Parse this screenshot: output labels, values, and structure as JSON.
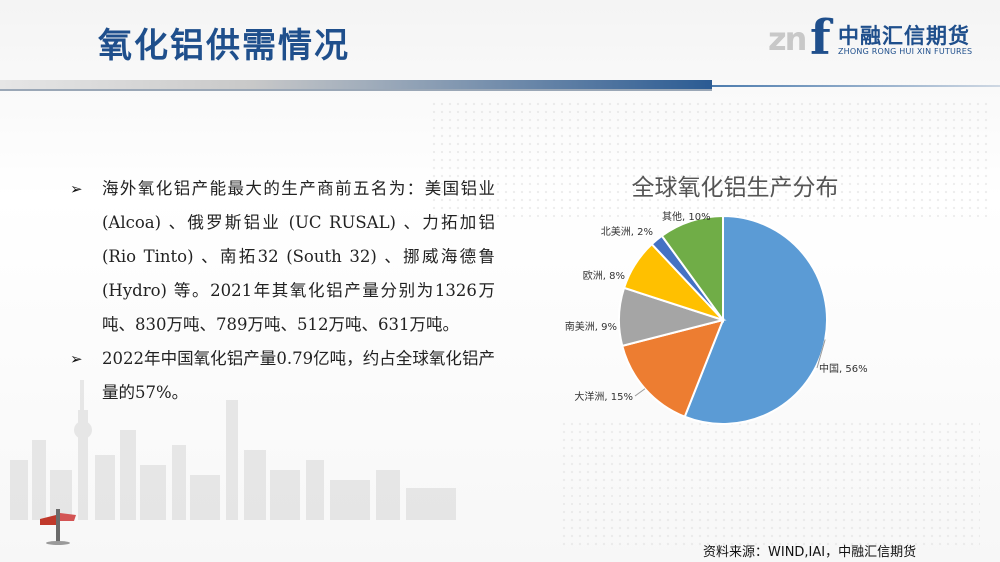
{
  "header": {
    "title": "氧化铝供需情况"
  },
  "logo": {
    "mark_left": "zn",
    "mark_right": "f",
    "name_cn": "中融汇信期货",
    "name_en": "ZHONG RONG HUI XIN FUTURES"
  },
  "bullets": [
    {
      "text": "海外氧化铝产能最大的生产商前五名为：美国铝业 (Alcoa) 、俄罗斯铝业 (UC RUSAL) 、力拓加铝 (Rio Tinto) 、南拓32 (South 32) 、挪威海德鲁(Hydro) 等。2021年其氧化铝产量分别为1326万吨、830万吨、789万吨、512万吨、631万吨。"
    },
    {
      "text": "2022年中国氧化铝产量0.79亿吨，约占全球氧化铝产量的57%。"
    }
  ],
  "bullet_marker": "➢",
  "chart_data": {
    "type": "pie",
    "title": "全球氧化铝生产分布",
    "slices": [
      {
        "name": "中国",
        "value": 56,
        "label": "中国, 56%",
        "color": "#5b9bd5"
      },
      {
        "name": "大洋洲",
        "value": 15,
        "label": "大洋洲, 15%",
        "color": "#ed7d31"
      },
      {
        "name": "南美洲",
        "value": 9,
        "label": "南美洲, 9%",
        "color": "#a5a5a5"
      },
      {
        "name": "欧洲",
        "value": 8,
        "label": "欧洲, 8%",
        "color": "#ffc000"
      },
      {
        "name": "北美洲",
        "value": 2,
        "label": "北美洲, 2%",
        "color": "#4472c4"
      },
      {
        "name": "其他",
        "value": 10,
        "label": "其他, 10%",
        "color": "#70ad47"
      }
    ]
  },
  "footer": {
    "source": "资料来源：WIND,IAI，中融汇信期货"
  }
}
